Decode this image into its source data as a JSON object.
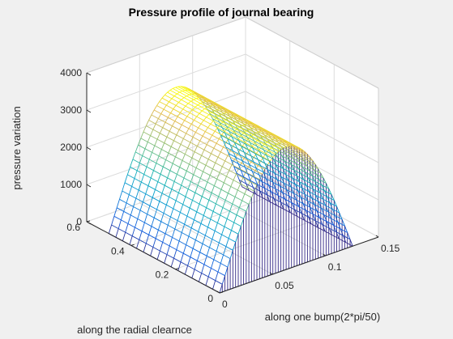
{
  "chart_data": {
    "type": "surface",
    "title": "Pressure profile of journal bearing",
    "xlabel": "along one bump(2*pi/50)",
    "ylabel": "along the radial clearnce",
    "zlabel": "pressure variation",
    "x_ticks": [
      "0",
      "0.05",
      "0.1",
      "0.15"
    ],
    "y_ticks": [
      "0",
      "0.2",
      "0.4",
      "0.6"
    ],
    "z_ticks": [
      "0",
      "1000",
      "2000",
      "3000",
      "4000"
    ],
    "xlim": [
      0,
      0.15
    ],
    "ylim": [
      0,
      0.6
    ],
    "zlim": [
      0,
      4000
    ],
    "x_range": [
      0,
      0.1257
    ],
    "y_range": [
      0,
      0.5
    ],
    "z_peak": 3300,
    "profile": "p = z_peak * sin(pi * x / x_max), constant along y",
    "grid": true,
    "colormap": "parula"
  }
}
